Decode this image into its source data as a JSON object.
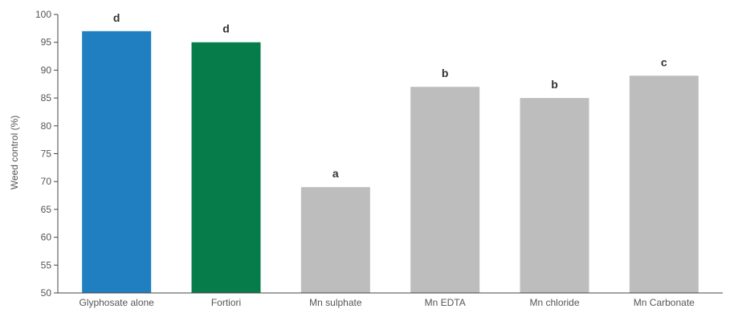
{
  "chart_data": {
    "type": "bar",
    "ylabel": "Weed control (%)",
    "ylim": [
      50,
      100
    ],
    "yticks": [
      50,
      55,
      60,
      65,
      70,
      75,
      80,
      85,
      90,
      95,
      100
    ],
    "grid": false,
    "categories": [
      "Glyphosate alone",
      "Fortiori",
      "Mn sulphate",
      "Mn EDTA",
      "Mn chloride",
      "Mn Carbonate"
    ],
    "values": [
      97,
      95,
      69,
      87,
      85,
      89
    ],
    "significance_letters": [
      "d",
      "d",
      "a",
      "b",
      "b",
      "c"
    ],
    "colors": [
      "#1f7fc1",
      "#067c4a",
      "#bdbdbd",
      "#bdbdbd",
      "#bdbdbd",
      "#bdbdbd"
    ]
  }
}
